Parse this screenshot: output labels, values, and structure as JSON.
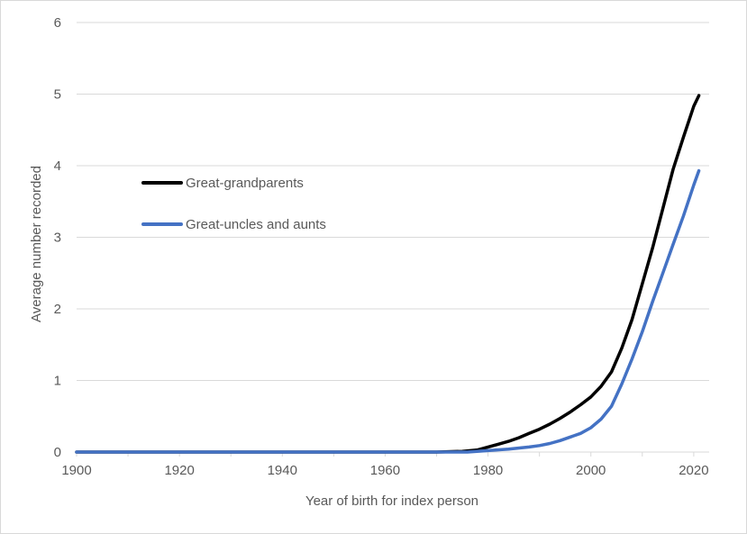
{
  "chart_data": {
    "type": "line",
    "title": "",
    "xlabel": "Year of birth for index person",
    "ylabel": "Average number recorded",
    "xlim": [
      1900,
      2023
    ],
    "ylim": [
      0,
      6
    ],
    "x_ticks": [
      1900,
      1920,
      1940,
      1960,
      1980,
      2000,
      2020
    ],
    "x_minor_tick_step": 10,
    "y_ticks": [
      0,
      1,
      2,
      3,
      4,
      5,
      6
    ],
    "grid": "horizontal",
    "legend_position": "upper-left inside plot",
    "series": [
      {
        "name": "Great-grandparents",
        "color": "#000000",
        "x": [
          1900,
          1970,
          1975,
          1978,
          1980,
          1982,
          1984,
          1986,
          1988,
          1990,
          1992,
          1994,
          1996,
          1998,
          2000,
          2002,
          2004,
          2006,
          2008,
          2010,
          2012,
          2014,
          2016,
          2018,
          2020,
          2021
        ],
        "y": [
          0,
          0,
          0.01,
          0.03,
          0.07,
          0.11,
          0.15,
          0.2,
          0.26,
          0.32,
          0.39,
          0.47,
          0.56,
          0.66,
          0.77,
          0.92,
          1.12,
          1.45,
          1.85,
          2.35,
          2.85,
          3.4,
          3.95,
          4.4,
          4.83,
          4.98
        ]
      },
      {
        "name": "Great-uncles and aunts",
        "color": "#4472c4",
        "x": [
          1900,
          1976,
          1980,
          1984,
          1988,
          1990,
          1992,
          1994,
          1996,
          1998,
          2000,
          2002,
          2004,
          2006,
          2008,
          2010,
          2012,
          2014,
          2016,
          2018,
          2020,
          2021
        ],
        "y": [
          0,
          0,
          0.02,
          0.04,
          0.07,
          0.09,
          0.12,
          0.16,
          0.21,
          0.26,
          0.34,
          0.46,
          0.64,
          0.95,
          1.3,
          1.68,
          2.1,
          2.5,
          2.9,
          3.3,
          3.73,
          3.93
        ]
      }
    ]
  }
}
